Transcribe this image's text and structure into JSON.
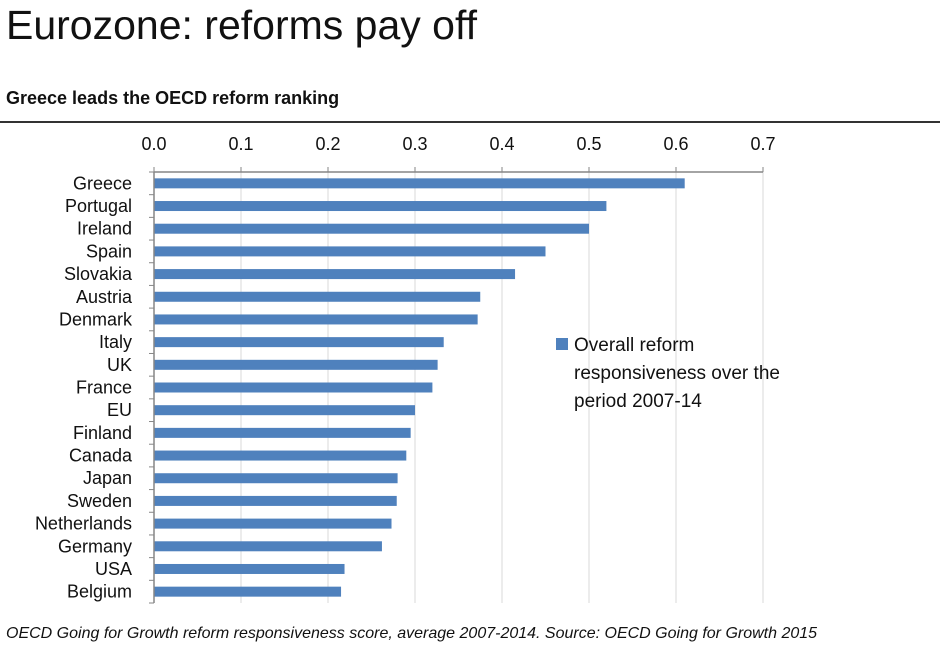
{
  "header": {
    "title": "Eurozone: reforms pay off",
    "subtitle": "Greece leads the OECD reform ranking"
  },
  "footer": {
    "note": "OECD Going for Growth reform responsiveness score, average 2007-2014. Source: OECD Going for Growth 2015"
  },
  "colors": {
    "bar": "#4f81bd",
    "axis": "#868686",
    "grid": "#d9d9d9"
  },
  "chart_data": {
    "type": "bar",
    "orientation": "horizontal",
    "categories": [
      "Greece",
      "Portugal",
      "Ireland",
      "Spain",
      "Slovakia",
      "Austria",
      "Denmark",
      "Italy",
      "UK",
      "France",
      "EU",
      "Finland",
      "Canada",
      "Japan",
      "Sweden",
      "Netherlands",
      "Germany",
      "USA",
      "Belgium"
    ],
    "series": [
      {
        "name": "Overall reform responsiveness over the period 2007-14",
        "values": [
          0.61,
          0.52,
          0.5,
          0.45,
          0.415,
          0.375,
          0.372,
          0.333,
          0.326,
          0.32,
          0.3,
          0.295,
          0.29,
          0.28,
          0.279,
          0.273,
          0.262,
          0.219,
          0.215
        ]
      }
    ],
    "xlim": [
      0,
      0.7
    ],
    "xticks": [
      "0.0",
      "0.1",
      "0.2",
      "0.3",
      "0.4",
      "0.5",
      "0.6",
      "0.7"
    ],
    "grid": true,
    "legend": "right-middle",
    "legend_lines": [
      "Overall reform",
      "responsiveness over the",
      "period 2007-14"
    ]
  }
}
